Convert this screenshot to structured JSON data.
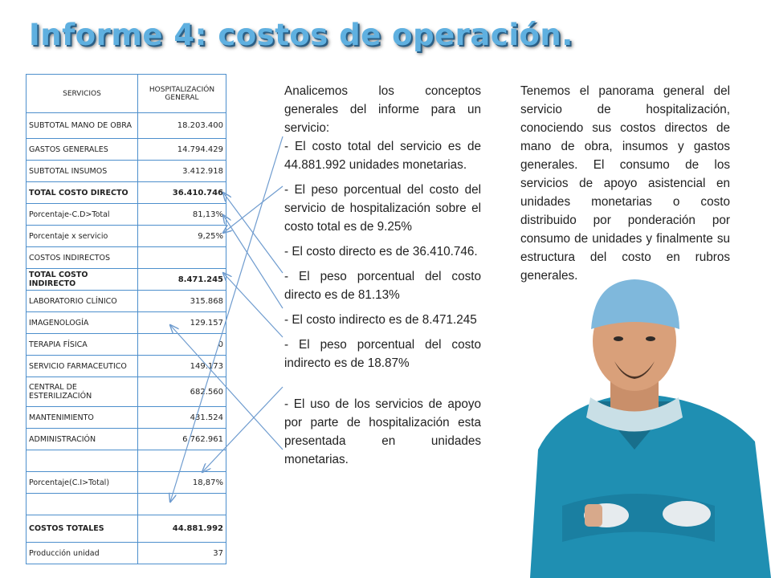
{
  "title": "Informe 4: costos de operación.",
  "table": {
    "header": [
      "SERVICIOS",
      "HOSPITALIZACIÓN GENERAL"
    ],
    "rows": [
      {
        "label": "SUBTOTAL MANO DE OBRA",
        "value": "18.203.400"
      },
      {
        "label": " GASTOS GENERALES",
        "value": "14.794.429"
      },
      {
        "label": "SUBTOTAL INSUMOS",
        "value": "3.412.918"
      },
      {
        "label": "TOTAL COSTO DIRECTO",
        "value": "36.410.746"
      },
      {
        "label": "Porcentaje-C.D>Total",
        "value": "81,13%"
      },
      {
        "label": "Porcentaje x servicio",
        "value": "9,25%"
      },
      {
        "label": "COSTOS INDIRECTOS",
        "value": ""
      },
      {
        "label": "TOTAL COSTO INDIRECTO",
        "value": "8.471.245"
      },
      {
        "label": "LABORATORIO CLÍNICO",
        "value": "315.868"
      },
      {
        "label": "IMAGENOLOGÍA",
        "value": "129.157"
      },
      {
        "label": "TERAPIA FÍSICA",
        "value": "0"
      },
      {
        "label": "SERVICIO FARMACEUTICO",
        "value": "149.173"
      },
      {
        "label": "CENTRAL DE ESTERILIZACIÓN",
        "value": "682.560"
      },
      {
        "label": "MANTENIMIENTO",
        "value": "431.524"
      },
      {
        "label": "ADMINISTRACIÓN",
        "value": "6.762.961"
      },
      {
        "label": "",
        "value": ""
      },
      {
        "label": "Porcentaje(C.I>Total)",
        "value": "18,87%"
      },
      {
        "label": "",
        "value": ""
      },
      {
        "label": "COSTOS TOTALES",
        "value": "44.881.992"
      },
      {
        "label": " Producción unidad",
        "value": "37"
      }
    ]
  },
  "middle": {
    "intro": "Analicemos los conceptos generales del informe para un servicio:",
    "b1": "- El costo total del servicio es de 44.881.992 unidades monetarias.",
    "b2": "- El peso porcentual del costo del servicio de hospitalización sobre el costo total es de 9.25%",
    "b3": "- El costo directo es de 36.410.746.",
    "b4": "- El peso porcentual del costo directo es de 81.13%",
    "b5": "- El costo indirecto es de 8.471.245",
    "b6": "- El peso porcentual del costo indirecto es de 18.87%",
    "b7": "- El uso de los servicios de apoyo por parte de hospitalización esta presentada en unidades monetarias."
  },
  "right": {
    "text": "Tenemos el panorama general del servicio de hospitalización, conociendo sus costos directos de mano de obra, insumos y gastos generales. El consumo de los servicios de apoyo asistencial en unidades monetarias o costo distribuido por ponderación por consumo de unidades y finalmente su estructura del costo en rubros generales."
  },
  "colors": {
    "title": "#5fb0e0",
    "table_border": "#4d8fcc",
    "arrow": "#6f9ccf",
    "scrubs": "#1f8fb2"
  }
}
